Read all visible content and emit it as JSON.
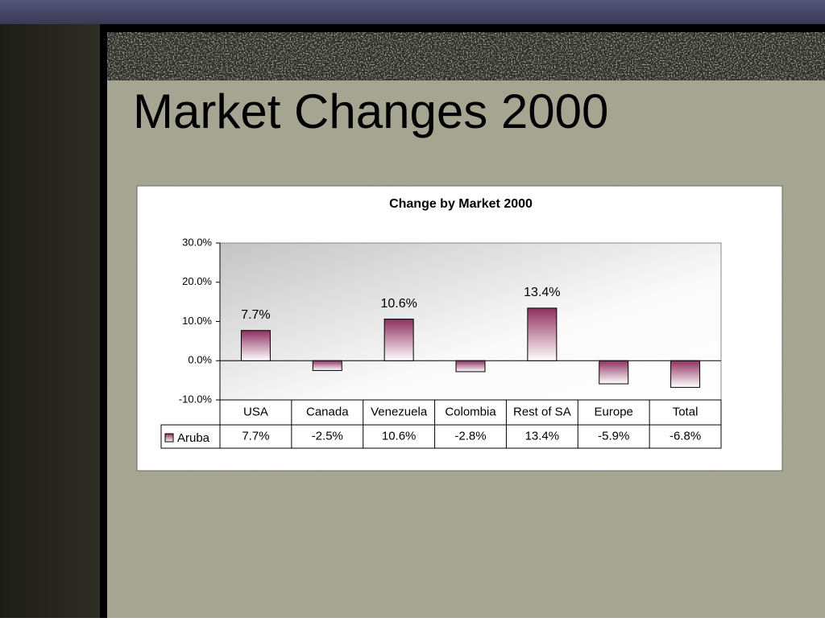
{
  "title": "Market Changes 2000",
  "chart_data": {
    "type": "bar",
    "title": "Change by Market 2000",
    "categories": [
      "USA",
      "Canada",
      "Venezuela",
      "Colombia",
      "Rest of SA",
      "Europe",
      "Total"
    ],
    "series": [
      {
        "name": "Aruba",
        "color": "#8e2f5e",
        "values": [
          7.7,
          -2.5,
          10.6,
          -2.8,
          13.4,
          -5.9,
          -6.8
        ],
        "value_labels": [
          "7.7%",
          "-2.5%",
          "10.6%",
          "-2.8%",
          "13.4%",
          "-5.9%",
          "-6.8%"
        ]
      }
    ],
    "ylim": [
      -10,
      30
    ],
    "yticks": [
      {
        "value": -10,
        "label": "-10.0%"
      },
      {
        "value": 0,
        "label": "0.0%"
      },
      {
        "value": 10,
        "label": "10.0%"
      },
      {
        "value": 20,
        "label": "20.0%"
      },
      {
        "value": 30,
        "label": "30.0%"
      }
    ]
  }
}
